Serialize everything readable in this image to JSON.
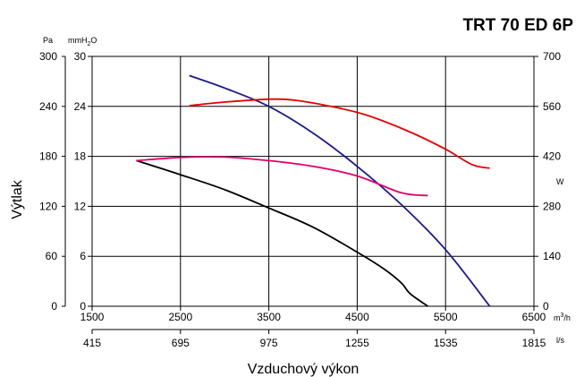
{
  "chart_data": {
    "type": "line",
    "title": "TRT 70 ED 6P",
    "xlabel": "Vzduchový výkon",
    "ylabel": "Výtlak",
    "x_primary": {
      "unit": "m³/h",
      "range": [
        1500,
        6500
      ],
      "ticks": [
        "1500",
        "2500",
        "3500",
        "4500",
        "5500",
        "6500"
      ]
    },
    "x_secondary": {
      "unit": "l/s",
      "ticks": [
        "415",
        "695",
        "975",
        "1255",
        "1535",
        "1815"
      ]
    },
    "y_left_pa": {
      "unit": "Pa",
      "range": [
        0,
        300
      ],
      "ticks": [
        "0",
        "60",
        "120",
        "180",
        "240",
        "300"
      ]
    },
    "y_left_mmh2o": {
      "unit": "mmH2O",
      "ticks": [
        "0",
        "6",
        "12",
        "18",
        "24",
        "30"
      ]
    },
    "y_right_w": {
      "unit": "W",
      "range": [
        0,
        700
      ],
      "ticks": [
        "0",
        "140",
        "280",
        "420",
        "560",
        "700"
      ]
    },
    "grid": true,
    "series": [
      {
        "color": "#1a1a8c",
        "axis": "pressure",
        "x": [
          2600,
          3000,
          3500,
          4000,
          4500,
          5000,
          5500,
          6000
        ],
        "y": [
          277,
          262,
          240,
          208,
          168,
          122,
          68,
          0
        ]
      },
      {
        "color": "#000000",
        "axis": "pressure",
        "x": [
          2000,
          2500,
          3000,
          3500,
          4000,
          4500,
          4800,
          5000,
          5100,
          5300
        ],
        "y": [
          175,
          158,
          140,
          118,
          95,
          65,
          45,
          28,
          15,
          0
        ]
      },
      {
        "color": "#e60000",
        "axis": "power",
        "x": [
          2600,
          3000,
          3500,
          3800,
          4200,
          4600,
          5100,
          5500,
          5800,
          6000
        ],
        "y": [
          562,
          572,
          580,
          577,
          560,
          536,
          488,
          440,
          397,
          387
        ]
      },
      {
        "color": "#e0006a",
        "axis": "power",
        "x": [
          2000,
          2500,
          3000,
          3500,
          4000,
          4500,
          5000,
          5300
        ],
        "y": [
          408,
          417,
          418,
          408,
          392,
          365,
          318,
          310
        ]
      }
    ]
  },
  "labels": {
    "pa_unit": "Pa",
    "mm_unit_base": "mmH",
    "mm_unit_sub": "2",
    "mm_unit_tail": "O",
    "w_unit": "W",
    "m3h_unit_base": "m",
    "m3h_unit_sup": "3",
    "m3h_unit_tail": "/h",
    "ls_unit": "l/s"
  }
}
